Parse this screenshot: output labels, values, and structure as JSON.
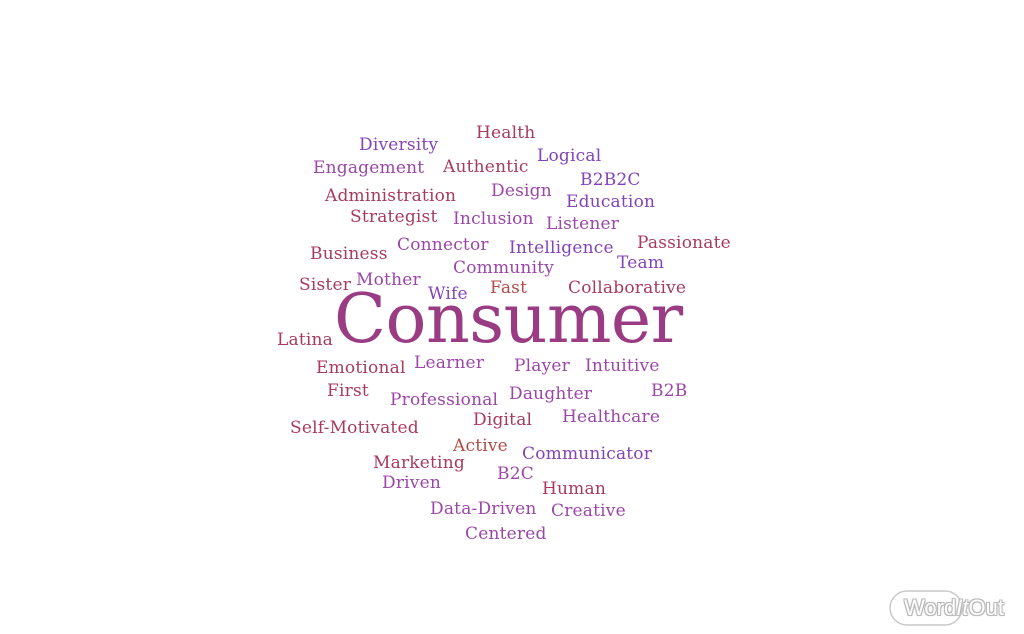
{
  "colors": {
    "magenta": "#9a3c84",
    "crimson": "#a83a5c",
    "violet": "#8443b8",
    "purple": "#9b46a8",
    "redorange": "#b34b46"
  },
  "words": [
    {
      "id": "health",
      "text": "Health",
      "color": "crimson"
    },
    {
      "id": "diversity",
      "text": "Diversity",
      "color": "violet"
    },
    {
      "id": "logical",
      "text": "Logical",
      "color": "violet"
    },
    {
      "id": "engagement",
      "text": "Engagement",
      "color": "purple"
    },
    {
      "id": "authentic",
      "text": "Authentic",
      "color": "crimson"
    },
    {
      "id": "b2b2c",
      "text": "B2B2C",
      "color": "violet"
    },
    {
      "id": "administration",
      "text": "Administration",
      "color": "crimson"
    },
    {
      "id": "design",
      "text": "Design",
      "color": "purple"
    },
    {
      "id": "education",
      "text": "Education",
      "color": "violet"
    },
    {
      "id": "strategist",
      "text": "Strategist",
      "color": "crimson"
    },
    {
      "id": "inclusion",
      "text": "Inclusion",
      "color": "purple"
    },
    {
      "id": "listener",
      "text": "Listener",
      "color": "purple"
    },
    {
      "id": "passionate",
      "text": "Passionate",
      "color": "crimson"
    },
    {
      "id": "business",
      "text": "Business",
      "color": "crimson"
    },
    {
      "id": "connector",
      "text": "Connector",
      "color": "purple"
    },
    {
      "id": "intelligence",
      "text": "Intelligence",
      "color": "violet"
    },
    {
      "id": "team",
      "text": "Team",
      "color": "violet"
    },
    {
      "id": "community",
      "text": "Community",
      "color": "purple"
    },
    {
      "id": "sister",
      "text": "Sister",
      "color": "crimson"
    },
    {
      "id": "mother",
      "text": "Mother",
      "color": "purple"
    },
    {
      "id": "wife",
      "text": "Wife",
      "color": "violet"
    },
    {
      "id": "fast",
      "text": "Fast",
      "color": "redorange"
    },
    {
      "id": "collaborative",
      "text": "Collaborative",
      "color": "crimson"
    },
    {
      "id": "consumer",
      "text": "Consumer",
      "color": "magenta"
    },
    {
      "id": "latina",
      "text": "Latina",
      "color": "crimson"
    },
    {
      "id": "emotional",
      "text": "Emotional",
      "color": "crimson"
    },
    {
      "id": "learner",
      "text": "Learner",
      "color": "purple"
    },
    {
      "id": "player",
      "text": "Player",
      "color": "purple"
    },
    {
      "id": "intuitive",
      "text": "Intuitive",
      "color": "purple"
    },
    {
      "id": "first",
      "text": "First",
      "color": "crimson"
    },
    {
      "id": "professional",
      "text": "Professional",
      "color": "purple"
    },
    {
      "id": "daughter",
      "text": "Daughter",
      "color": "purple"
    },
    {
      "id": "b2b",
      "text": "B2B",
      "color": "purple"
    },
    {
      "id": "digital",
      "text": "Digital",
      "color": "crimson"
    },
    {
      "id": "healthcare",
      "text": "Healthcare",
      "color": "purple"
    },
    {
      "id": "self-motivated",
      "text": "Self-Motivated",
      "color": "crimson"
    },
    {
      "id": "active",
      "text": "Active",
      "color": "redorange"
    },
    {
      "id": "communicator",
      "text": "Communicator",
      "color": "violet"
    },
    {
      "id": "marketing",
      "text": "Marketing",
      "color": "crimson"
    },
    {
      "id": "b2c",
      "text": "B2C",
      "color": "purple"
    },
    {
      "id": "driven",
      "text": "Driven",
      "color": "purple"
    },
    {
      "id": "human",
      "text": "Human",
      "color": "crimson"
    },
    {
      "id": "data-driven",
      "text": "Data-Driven",
      "color": "purple"
    },
    {
      "id": "creative",
      "text": "Creative",
      "color": "purple"
    },
    {
      "id": "centered",
      "text": "Centered",
      "color": "purple"
    }
  ],
  "logo": {
    "part1": "Word",
    "part2": "It",
    "part3": "Out"
  }
}
